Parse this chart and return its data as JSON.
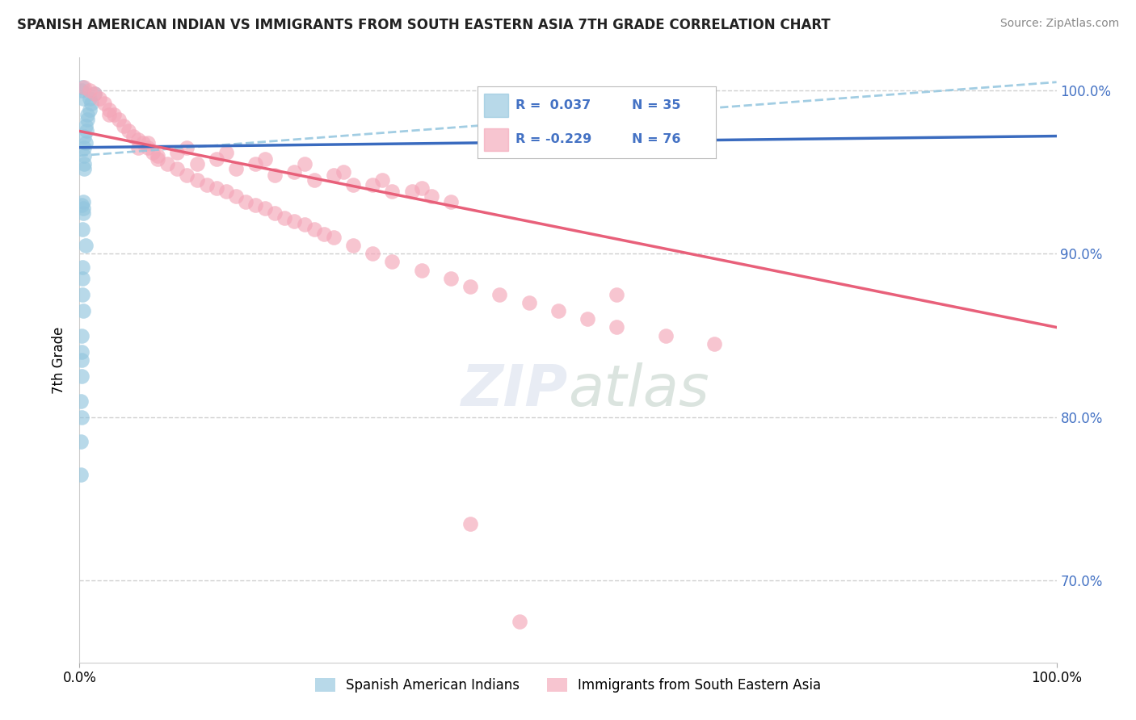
{
  "title": "SPANISH AMERICAN INDIAN VS IMMIGRANTS FROM SOUTH EASTERN ASIA 7TH GRADE CORRELATION CHART",
  "source": "Source: ZipAtlas.com",
  "ylabel": "7th Grade",
  "legend_label_blue": "Spanish American Indians",
  "legend_label_pink": "Immigrants from South Eastern Asia",
  "blue_color": "#92c5de",
  "pink_color": "#f4a6b8",
  "trend_blue_color": "#3a6bbf",
  "trend_pink_color": "#e8607a",
  "trend_dashed_color": "#92c5de",
  "ytick_color": "#4472c4",
  "blue_scatter_x": [
    0.1,
    0.15,
    0.2,
    0.2,
    0.2,
    0.25,
    0.3,
    0.3,
    0.35,
    0.4,
    0.4,
    0.45,
    0.5,
    0.5,
    0.5,
    0.6,
    0.6,
    0.7,
    0.8,
    0.8,
    1.0,
    1.0,
    1.2,
    1.5,
    0.2,
    0.3,
    0.4,
    0.5,
    0.2,
    0.3,
    0.6,
    0.3,
    0.4,
    0.2,
    0.1
  ],
  "blue_scatter_y": [
    76.5,
    81.0,
    80.0,
    82.5,
    83.5,
    85.0,
    87.5,
    88.5,
    92.5,
    92.8,
    93.2,
    95.5,
    96.0,
    96.5,
    97.2,
    96.8,
    97.8,
    97.5,
    98.2,
    98.5,
    98.8,
    99.5,
    99.2,
    99.8,
    100.0,
    100.2,
    99.5,
    95.2,
    93.0,
    91.5,
    90.5,
    89.2,
    86.5,
    84.0,
    78.5
  ],
  "pink_scatter_x": [
    0.5,
    1.0,
    1.5,
    2.0,
    2.5,
    3.0,
    3.5,
    4.0,
    4.5,
    5.0,
    5.5,
    6.0,
    6.5,
    7.0,
    7.5,
    8.0,
    9.0,
    10.0,
    11.0,
    12.0,
    13.0,
    14.0,
    15.0,
    16.0,
    17.0,
    18.0,
    19.0,
    20.0,
    21.0,
    22.0,
    23.0,
    24.0,
    25.0,
    26.0,
    28.0,
    30.0,
    32.0,
    35.0,
    38.0,
    40.0,
    43.0,
    46.0,
    49.0,
    52.0,
    55.0,
    60.0,
    65.0,
    55.0,
    8.0,
    12.0,
    16.0,
    20.0,
    24.0,
    28.0,
    32.0,
    36.0,
    6.0,
    10.0,
    14.0,
    18.0,
    22.0,
    26.0,
    30.0,
    34.0,
    38.0,
    3.0,
    7.0,
    11.0,
    15.0,
    19.0,
    23.0,
    27.0,
    31.0,
    35.0,
    40.0,
    45.0
  ],
  "pink_scatter_y": [
    100.2,
    100.0,
    99.8,
    99.5,
    99.2,
    98.8,
    98.5,
    98.2,
    97.8,
    97.5,
    97.2,
    97.0,
    96.8,
    96.5,
    96.2,
    96.0,
    95.5,
    95.2,
    94.8,
    94.5,
    94.2,
    94.0,
    93.8,
    93.5,
    93.2,
    93.0,
    92.8,
    92.5,
    92.2,
    92.0,
    91.8,
    91.5,
    91.2,
    91.0,
    90.5,
    90.0,
    89.5,
    89.0,
    88.5,
    88.0,
    87.5,
    87.0,
    86.5,
    86.0,
    85.5,
    85.0,
    84.5,
    87.5,
    95.8,
    95.5,
    95.2,
    94.8,
    94.5,
    94.2,
    93.8,
    93.5,
    96.5,
    96.2,
    95.8,
    95.5,
    95.0,
    94.8,
    94.2,
    93.8,
    93.2,
    98.5,
    96.8,
    96.5,
    96.2,
    95.8,
    95.5,
    95.0,
    94.5,
    94.0,
    73.5,
    67.5
  ],
  "blue_trend_start_y": 96.5,
  "blue_trend_end_y": 97.2,
  "pink_trend_start_y": 97.5,
  "pink_trend_end_y": 85.5,
  "dashed_trend_start_x": 0,
  "dashed_trend_start_y": 96.0,
  "dashed_trend_end_x": 100,
  "dashed_trend_end_y": 100.5,
  "xlim": [
    0,
    100
  ],
  "ylim": [
    65,
    102
  ],
  "figsize": [
    14.06,
    8.92
  ],
  "dpi": 100
}
